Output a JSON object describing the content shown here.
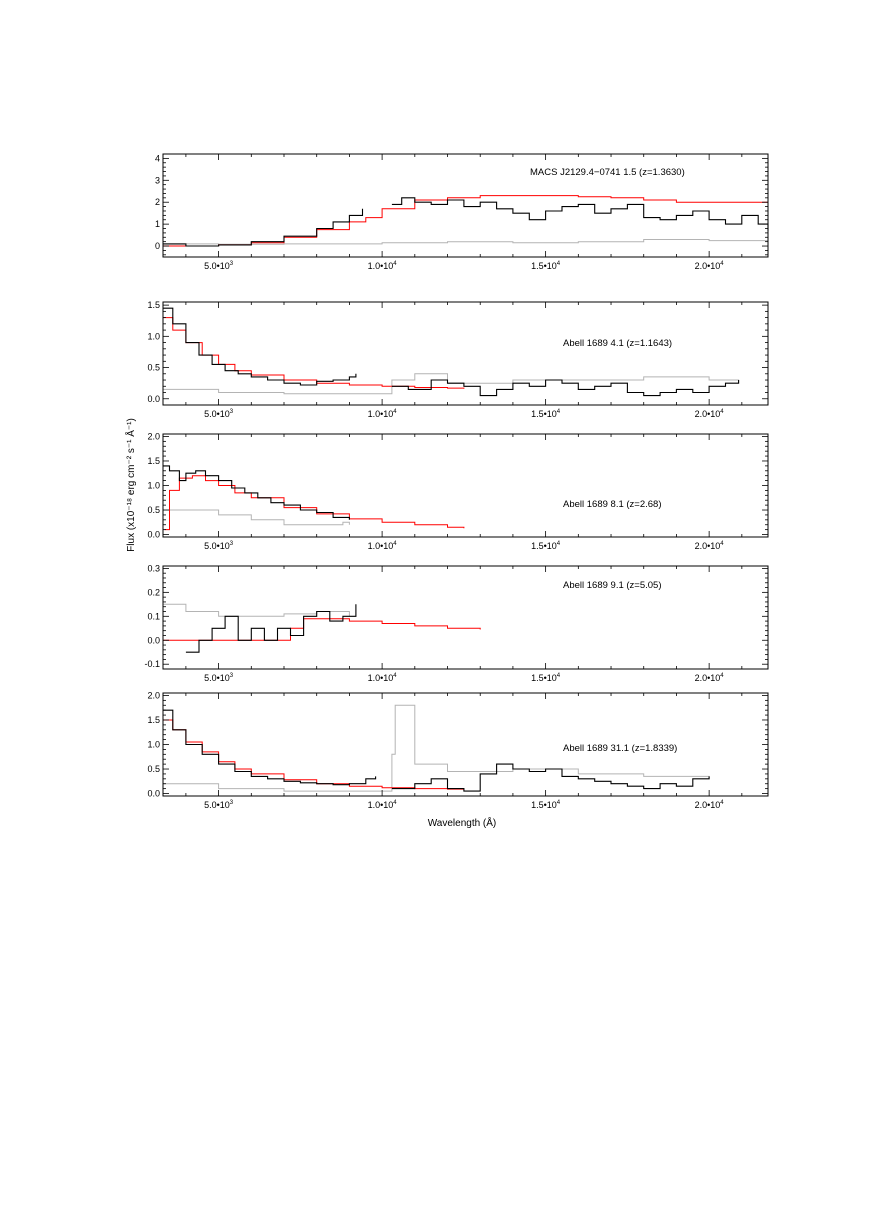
{
  "figure": {
    "xlabel": "Wavelength (Å)",
    "ylabel": "Flux (x10⁻¹⁸ erg cm⁻² s⁻¹ Å⁻¹)"
  },
  "colors": {
    "observed": "#000000",
    "model": "#ff0000",
    "error": "#b4b4b4",
    "axis": "#000000"
  },
  "chart_data": [
    {
      "type": "line",
      "label": "MACS J2129.4−0741 1.5 (z=1.3630)",
      "xlim": [
        3300,
        21800
      ],
      "ylim": [
        -0.5,
        4.2
      ],
      "yticks": [
        0,
        1,
        2,
        3,
        4
      ],
      "ytick_labels": [
        "0",
        "1",
        "2",
        "3",
        "4"
      ],
      "xticks": [
        5000,
        10000,
        15000,
        20000
      ],
      "xtick_labels": [
        "5.0•10",
        "1.0•10",
        "1.5•10",
        "2.0•10"
      ],
      "xtick_exp": "3,4,4,4",
      "series": [
        {
          "role": "observed",
          "x": [
            3300,
            4000,
            5000,
            6000,
            7000,
            8000,
            8500,
            9000,
            9400
          ],
          "y": [
            0.1,
            0.0,
            0.05,
            0.2,
            0.45,
            0.8,
            1.1,
            1.4,
            1.7
          ]
        },
        {
          "role": "observed",
          "x": [
            10300,
            10600,
            11000,
            11500,
            12000,
            12500,
            13000,
            13500,
            14000,
            14500,
            15000,
            15500,
            16000,
            16500,
            17000,
            17500,
            18000,
            18500,
            19000,
            19500,
            20000,
            20500,
            21000,
            21500,
            21800
          ],
          "y": [
            1.9,
            2.2,
            2.0,
            1.9,
            2.1,
            1.8,
            2.0,
            1.7,
            1.5,
            1.2,
            1.6,
            1.8,
            1.9,
            1.5,
            1.7,
            1.9,
            1.3,
            1.2,
            1.4,
            1.6,
            1.2,
            1.0,
            1.4,
            1.0,
            0.7
          ]
        },
        {
          "role": "model",
          "x": [
            3300,
            4000,
            5000,
            6000,
            7000,
            8000,
            9000,
            9500,
            10000,
            11000,
            12000,
            13000,
            14000,
            15000,
            16000,
            17000,
            18000,
            19000,
            20000,
            21000,
            21800
          ],
          "y": [
            0.0,
            0.0,
            0.05,
            0.15,
            0.4,
            0.75,
            1.1,
            1.3,
            1.7,
            2.1,
            2.2,
            2.3,
            2.3,
            2.3,
            2.25,
            2.2,
            2.1,
            2.0,
            2.0,
            2.0,
            2.05
          ]
        },
        {
          "role": "error",
          "x": [
            3300,
            5000,
            7000,
            9000,
            10000,
            12000,
            14000,
            16000,
            18000,
            20000,
            21800
          ],
          "y": [
            0.1,
            0.08,
            0.1,
            0.1,
            0.15,
            0.2,
            0.15,
            0.2,
            0.3,
            0.25,
            0.35
          ]
        }
      ]
    },
    {
      "type": "line",
      "label": "Abell 1689 4.1 (z=1.1643)",
      "xlim": [
        3300,
        21800
      ],
      "ylim": [
        -0.1,
        1.55
      ],
      "yticks": [
        0,
        0.5,
        1.0,
        1.5
      ],
      "ytick_labels": [
        "0.0",
        "0.5",
        "1.0",
        "1.5"
      ],
      "xticks": [
        5000,
        10000,
        15000,
        20000
      ],
      "xtick_labels": [
        "5.0•10",
        "1.0•10",
        "1.5•10",
        "2.0•10"
      ],
      "xtick_exp": "3,4,4,4",
      "series": [
        {
          "role": "observed",
          "x": [
            3300,
            3600,
            4000,
            4400,
            4800,
            5200,
            5600,
            6000,
            6500,
            7000,
            7500,
            8000,
            8500,
            9000,
            9200
          ],
          "y": [
            1.45,
            1.2,
            0.9,
            0.7,
            0.55,
            0.45,
            0.4,
            0.35,
            0.3,
            0.25,
            0.22,
            0.28,
            0.3,
            0.35,
            0.4
          ]
        },
        {
          "role": "observed",
          "x": [
            10300,
            10800,
            11500,
            12000,
            12500,
            13000,
            13500,
            14000,
            14500,
            15000,
            15500,
            16000,
            16500,
            17000,
            17500,
            18000,
            18500,
            19000,
            19500,
            20000,
            20500,
            20900
          ],
          "y": [
            0.2,
            0.15,
            0.3,
            0.25,
            0.2,
            0.05,
            0.15,
            0.25,
            0.2,
            0.3,
            0.25,
            0.15,
            0.2,
            0.25,
            0.1,
            0.05,
            0.1,
            0.15,
            0.1,
            0.2,
            0.25,
            0.3
          ]
        },
        {
          "role": "model",
          "x": [
            3300,
            3600,
            4000,
            4500,
            5000,
            5500,
            6000,
            7000,
            8000,
            9000,
            10000,
            11000,
            12000,
            12500
          ],
          "y": [
            1.3,
            1.1,
            0.9,
            0.7,
            0.55,
            0.45,
            0.38,
            0.3,
            0.25,
            0.22,
            0.2,
            0.18,
            0.17,
            0.16
          ]
        },
        {
          "role": "error",
          "x": [
            3300,
            5000,
            7000,
            9000,
            10300,
            11000,
            12000,
            14000,
            16000,
            18000,
            20000,
            20900
          ],
          "y": [
            0.15,
            0.1,
            0.08,
            0.08,
            0.3,
            0.4,
            0.25,
            0.3,
            0.3,
            0.35,
            0.3,
            0.25
          ]
        }
      ]
    },
    {
      "type": "line",
      "label": "Abell 1689 8.1 (z=2.68)",
      "xlim": [
        3300,
        21800
      ],
      "ylim": [
        -0.05,
        2.05
      ],
      "yticks": [
        0,
        0.5,
        1.0,
        1.5,
        2.0
      ],
      "ytick_labels": [
        "0.0",
        "0.5",
        "1.0",
        "1.5",
        "2.0"
      ],
      "xticks": [
        5000,
        10000,
        15000,
        20000
      ],
      "xtick_labels": [
        "5.0•10",
        "1.0•10",
        "1.5•10",
        "2.0•10"
      ],
      "xtick_exp": "3,4,4,4",
      "series": [
        {
          "role": "observed",
          "x": [
            3300,
            3500,
            3800,
            4000,
            4300,
            4600,
            5000,
            5400,
            5800,
            6200,
            6600,
            7000,
            7500,
            8000,
            8500,
            9000
          ],
          "y": [
            1.4,
            1.3,
            1.1,
            1.25,
            1.3,
            1.2,
            1.1,
            0.95,
            0.85,
            0.75,
            0.65,
            0.6,
            0.5,
            0.45,
            0.35,
            0.3
          ]
        },
        {
          "role": "model",
          "x": [
            3350,
            3500,
            3800,
            4200,
            4600,
            5000,
            5500,
            6000,
            7000,
            8000,
            9000,
            10000,
            11000,
            12000,
            12500
          ],
          "y": [
            0.1,
            0.9,
            1.15,
            1.2,
            1.1,
            1.0,
            0.85,
            0.75,
            0.55,
            0.42,
            0.32,
            0.25,
            0.2,
            0.15,
            0.13
          ]
        },
        {
          "role": "error",
          "x": [
            3300,
            4000,
            5000,
            6000,
            7000,
            8000,
            8800,
            9000
          ],
          "y": [
            0.5,
            0.5,
            0.4,
            0.3,
            0.2,
            0.2,
            0.25,
            0.2
          ]
        }
      ]
    },
    {
      "type": "line",
      "label": "Abell 1689 9.1 (z=5.05)",
      "xlim": [
        3300,
        21800
      ],
      "ylim": [
        -0.12,
        0.31
      ],
      "yticks": [
        -0.1,
        0,
        0.1,
        0.2,
        0.3
      ],
      "ytick_labels": [
        "-0.1",
        "0.0",
        "0.1",
        "0.2",
        "0.3"
      ],
      "xticks": [
        5000,
        10000,
        15000,
        20000
      ],
      "xtick_labels": [
        "5.0•10",
        "1.0•10",
        "1.5•10",
        "2.0•10"
      ],
      "xtick_exp": "3,4,4,4",
      "series": [
        {
          "role": "observed",
          "x": [
            4000,
            4400,
            4800,
            5200,
            5600,
            6000,
            6400,
            6800,
            7200,
            7600,
            8000,
            8400,
            8800,
            9200
          ],
          "y": [
            -0.05,
            0.0,
            0.05,
            0.1,
            0.0,
            0.05,
            0.0,
            0.05,
            0.02,
            0.1,
            0.12,
            0.08,
            0.1,
            0.15
          ]
        },
        {
          "role": "model",
          "x": [
            3300,
            4000,
            5000,
            6000,
            6800,
            7200,
            7600,
            8000,
            9000,
            10000,
            11000,
            12000,
            13000
          ],
          "y": [
            0.0,
            0.0,
            0.0,
            0.0,
            0.0,
            0.05,
            0.09,
            0.09,
            0.08,
            0.07,
            0.06,
            0.05,
            0.045
          ]
        },
        {
          "role": "error",
          "x": [
            3300,
            4000,
            5000,
            6000,
            7000,
            8000,
            9000
          ],
          "y": [
            0.15,
            0.12,
            0.1,
            0.1,
            0.11,
            0.12,
            0.1
          ]
        }
      ]
    },
    {
      "type": "line",
      "label": "Abell 1689 31.1 (z=1.8339)",
      "xlim": [
        3300,
        21800
      ],
      "ylim": [
        -0.05,
        2.05
      ],
      "yticks": [
        0,
        0.5,
        1.0,
        1.5,
        2.0
      ],
      "ytick_labels": [
        "0.0",
        "0.5",
        "1.0",
        "1.5",
        "2.0"
      ],
      "xticks": [
        5000,
        10000,
        15000,
        20000
      ],
      "xtick_labels": [
        "5.0•10",
        "1.0•10",
        "1.5•10",
        "2.0•10"
      ],
      "xtick_exp": "3,4,4,4",
      "series": [
        {
          "role": "observed",
          "x": [
            3300,
            3600,
            4000,
            4500,
            5000,
            5500,
            6000,
            6500,
            7000,
            7500,
            8000,
            8500,
            9000,
            9500,
            9800
          ],
          "y": [
            1.7,
            1.3,
            1.0,
            0.8,
            0.6,
            0.45,
            0.35,
            0.3,
            0.25,
            0.22,
            0.2,
            0.18,
            0.2,
            0.3,
            0.35
          ]
        },
        {
          "role": "observed",
          "x": [
            10300,
            11000,
            11500,
            12000,
            12500,
            13000,
            13500,
            14000,
            14500,
            15000,
            15500,
            16000,
            16500,
            17000,
            17500,
            18000,
            18500,
            19000,
            19500,
            20000
          ],
          "y": [
            0.1,
            0.2,
            0.3,
            0.1,
            0.05,
            0.4,
            0.6,
            0.5,
            0.45,
            0.5,
            0.35,
            0.3,
            0.25,
            0.2,
            0.15,
            0.1,
            0.2,
            0.15,
            0.3,
            0.35
          ]
        },
        {
          "role": "model",
          "x": [
            3300,
            3600,
            4000,
            4500,
            5000,
            5500,
            6000,
            7000,
            8000,
            9000,
            10000,
            11000,
            12000,
            12500
          ],
          "y": [
            1.5,
            1.3,
            1.05,
            0.85,
            0.65,
            0.5,
            0.4,
            0.28,
            0.2,
            0.15,
            0.12,
            0.1,
            0.09,
            0.08
          ]
        },
        {
          "role": "error",
          "x": [
            3300,
            5000,
            7000,
            9000,
            10300,
            10400,
            11000,
            12000,
            14000,
            16000,
            18000,
            20000
          ],
          "y": [
            0.2,
            0.1,
            0.05,
            0.05,
            0.8,
            1.8,
            0.6,
            0.45,
            0.5,
            0.4,
            0.35,
            0.3
          ]
        }
      ]
    }
  ]
}
